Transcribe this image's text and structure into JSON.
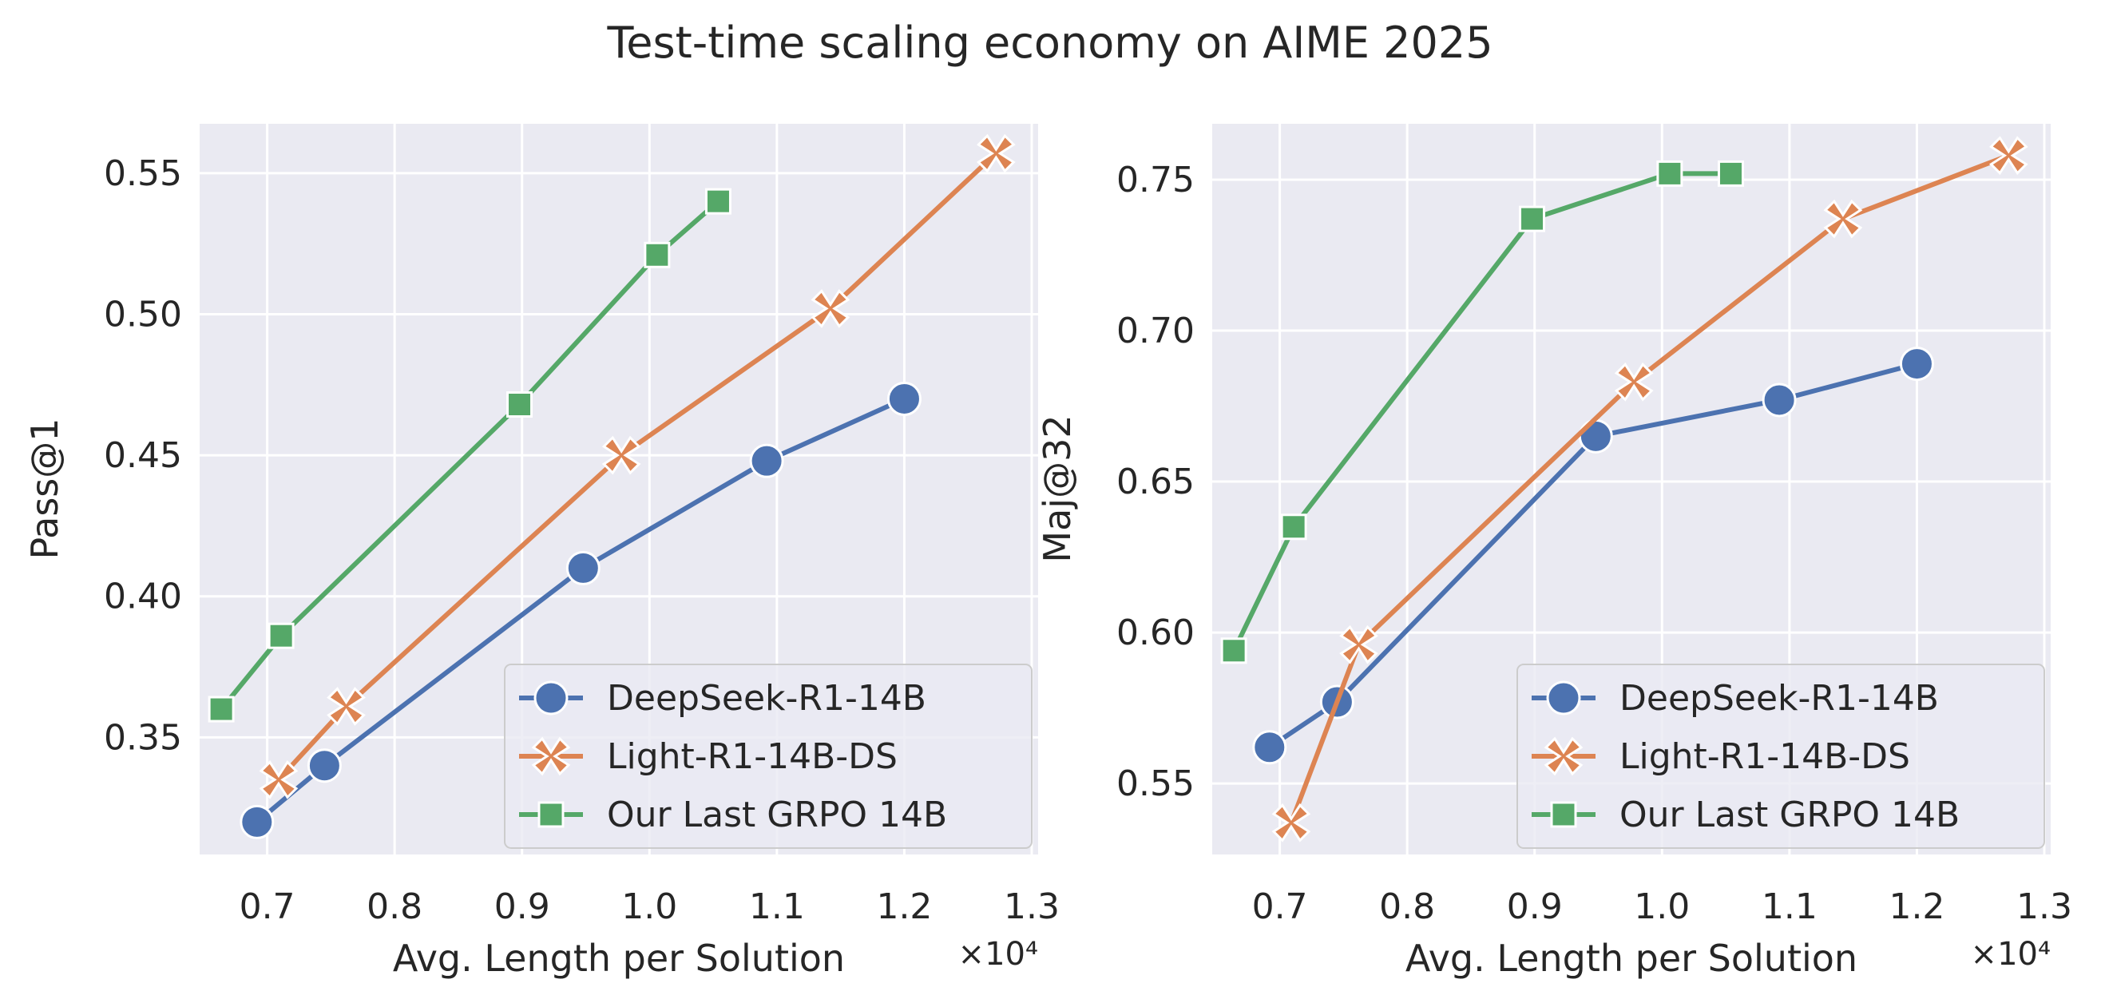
{
  "title": "Test-time scaling economy on AIME 2025",
  "colors": {
    "plot_bg": "#eaeaf2",
    "grid": "#ffffff",
    "series": [
      "#4c72b0",
      "#dd8452",
      "#55a868"
    ]
  },
  "markers": [
    "circle",
    "x",
    "square"
  ],
  "chart_data": [
    {
      "type": "line",
      "xlabel": "Avg. Length per Solution",
      "ylabel": "Pass@1",
      "x_multiplier": "×10⁴",
      "xlim": [
        0.647,
        1.305
      ],
      "ylim": [
        0.3085,
        0.5675
      ],
      "xticks": [
        "0.7",
        "0.8",
        "0.9",
        "1.0",
        "1.1",
        "1.2",
        "1.3"
      ],
      "xtick_values": [
        0.7,
        0.8,
        0.9,
        1.0,
        1.1,
        1.2,
        1.3
      ],
      "yticks": [
        "0.35",
        "0.40",
        "0.45",
        "0.50",
        "0.55"
      ],
      "ytick_values": [
        0.35,
        0.4,
        0.45,
        0.5,
        0.55
      ],
      "grid": true,
      "legend_position": "lower-right",
      "series": [
        {
          "name": "DeepSeek-R1-14B",
          "x": [
            0.692,
            0.745,
            0.948,
            1.092,
            1.2
          ],
          "y": [
            0.32,
            0.34,
            0.41,
            0.448,
            0.47
          ]
        },
        {
          "name": "Light-R1-14B-DS",
          "x": [
            0.709,
            0.762,
            0.978,
            1.142,
            1.272
          ],
          "y": [
            0.335,
            0.361,
            0.45,
            0.502,
            0.557
          ]
        },
        {
          "name": "Our Last GRPO 14B",
          "x": [
            0.664,
            0.711,
            0.898,
            1.006,
            1.054
          ],
          "y": [
            0.36,
            0.386,
            0.468,
            0.521,
            0.54
          ]
        }
      ]
    },
    {
      "type": "line",
      "xlabel": "Avg. Length per Solution",
      "ylabel": "Maj@32",
      "x_multiplier": "×10⁴",
      "xlim": [
        0.647,
        1.305
      ],
      "ylim": [
        0.5265,
        0.7685
      ],
      "xticks": [
        "0.7",
        "0.8",
        "0.9",
        "1.0",
        "1.1",
        "1.2",
        "1.3"
      ],
      "xtick_values": [
        0.7,
        0.8,
        0.9,
        1.0,
        1.1,
        1.2,
        1.3
      ],
      "yticks": [
        "0.55",
        "0.60",
        "0.65",
        "0.70",
        "0.75"
      ],
      "ytick_values": [
        0.55,
        0.6,
        0.65,
        0.7,
        0.75
      ],
      "grid": true,
      "legend_position": "lower-right",
      "series": [
        {
          "name": "DeepSeek-R1-14B",
          "x": [
            0.692,
            0.745,
            0.948,
            1.092,
            1.2
          ],
          "y": [
            0.562,
            0.577,
            0.665,
            0.677,
            0.689
          ]
        },
        {
          "name": "Light-R1-14B-DS",
          "x": [
            0.709,
            0.762,
            0.978,
            1.142,
            1.272
          ],
          "y": [
            0.537,
            0.596,
            0.683,
            0.737,
            0.758
          ]
        },
        {
          "name": "Our Last GRPO 14B",
          "x": [
            0.664,
            0.711,
            0.898,
            1.006,
            1.054
          ],
          "y": [
            0.594,
            0.635,
            0.737,
            0.752,
            0.752
          ]
        }
      ]
    }
  ]
}
